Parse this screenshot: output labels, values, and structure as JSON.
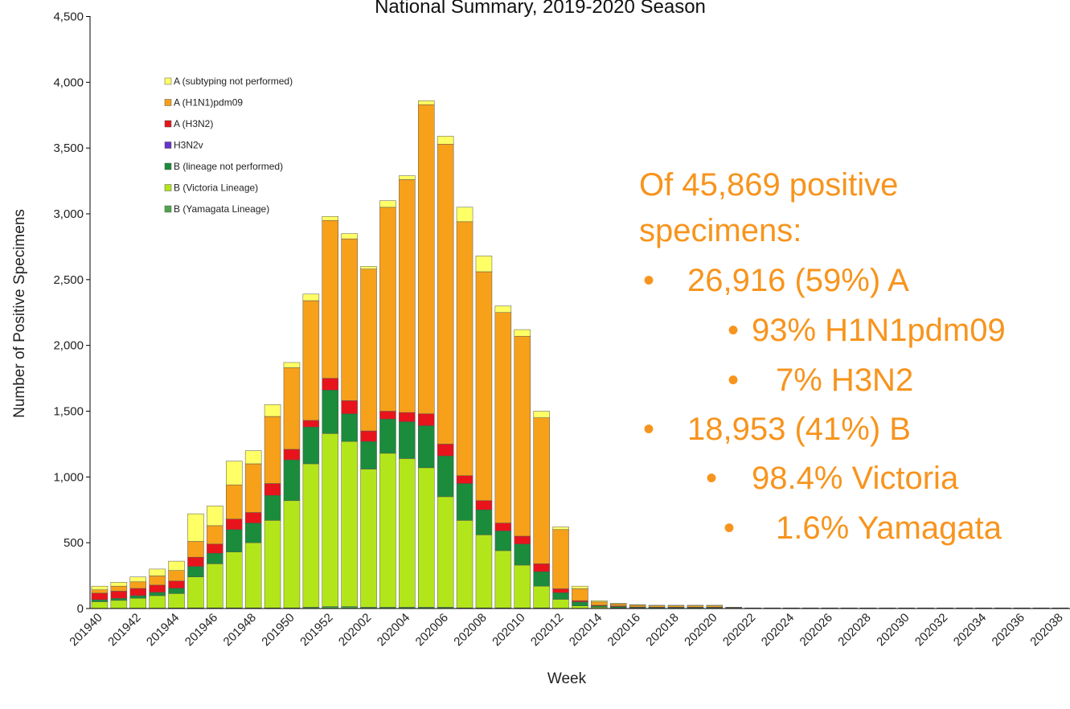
{
  "chart_data": {
    "type": "bar",
    "stacked": true,
    "title": "National Summary, 2019-2020 Season",
    "xlabel": "Week",
    "ylabel": "Number of Positive Specimens",
    "categories": [
      "201940",
      null,
      "201942",
      null,
      "201944",
      null,
      "201946",
      null,
      "201948",
      null,
      "201950",
      null,
      "201952",
      null,
      "202002",
      null,
      "202004",
      null,
      "202006",
      null,
      "202008",
      null,
      "202010",
      null,
      "202012",
      null,
      "202014",
      null,
      "202016",
      null,
      "202018",
      null,
      "202020",
      null,
      "202022",
      null,
      "202024",
      null,
      "202026",
      null,
      "202028",
      null,
      "202030",
      null,
      "202032",
      null,
      "202034",
      null,
      "202036",
      null,
      "202038"
    ],
    "series": [
      {
        "name": "B (Yamagata Lineage)",
        "color": "#4ca64c",
        "values": [
          2,
          2,
          3,
          3,
          4,
          5,
          5,
          5,
          5,
          5,
          5,
          10,
          15,
          15,
          10,
          10,
          10,
          10,
          10,
          5,
          5,
          5,
          5,
          5,
          2,
          1,
          0,
          0,
          0,
          0,
          0,
          0,
          0,
          0,
          0,
          0,
          0,
          0,
          0,
          0,
          0,
          0,
          0,
          0,
          0,
          0,
          0,
          0,
          0,
          0,
          0
        ]
      },
      {
        "name": "B (Victoria Lineage)",
        "color": "#b3e61a",
        "values": [
          50,
          60,
          75,
          95,
          110,
          235,
          335,
          425,
          495,
          665,
          815,
          1090,
          1315,
          1255,
          1050,
          1170,
          1130,
          1060,
          840,
          665,
          555,
          435,
          325,
          165,
          68,
          19,
          10,
          5,
          5,
          3,
          3,
          3,
          3,
          1,
          1,
          1,
          1,
          1,
          1,
          1,
          1,
          1,
          1,
          1,
          1,
          1,
          1,
          1,
          1,
          1,
          1
        ]
      },
      {
        "name": "B (lineage not performed)",
        "color": "#1a8c3c",
        "values": [
          15,
          15,
          20,
          25,
          40,
          80,
          80,
          170,
          150,
          190,
          310,
          280,
          330,
          210,
          210,
          260,
          280,
          320,
          310,
          280,
          190,
          150,
          160,
          110,
          50,
          30,
          10,
          10,
          5,
          5,
          5,
          5,
          5,
          2,
          1,
          1,
          1,
          1,
          1,
          1,
          1,
          1,
          1,
          1,
          1,
          1,
          1,
          1,
          1,
          1,
          1
        ]
      },
      {
        "name": "H3N2v",
        "color": "#6633cc",
        "values": [
          0,
          0,
          0,
          0,
          0,
          0,
          0,
          0,
          0,
          0,
          0,
          0,
          0,
          0,
          0,
          0,
          0,
          0,
          0,
          0,
          0,
          0,
          0,
          0,
          0,
          0,
          0,
          0,
          0,
          0,
          0,
          0,
          0,
          0,
          0,
          0,
          0,
          0,
          0,
          0,
          0,
          0,
          0,
          0,
          0,
          0,
          0,
          0,
          0,
          0,
          0
        ]
      },
      {
        "name": "A (H3N2)",
        "color": "#e8141b",
        "values": [
          50,
          55,
          55,
          55,
          55,
          70,
          70,
          80,
          80,
          90,
          80,
          50,
          90,
          100,
          80,
          60,
          70,
          90,
          90,
          60,
          70,
          60,
          60,
          60,
          30,
          10,
          5,
          5,
          2,
          2,
          2,
          2,
          2,
          1,
          0,
          0,
          0,
          0,
          0,
          0,
          0,
          0,
          0,
          0,
          0,
          0,
          0,
          0,
          0,
          0,
          0
        ]
      },
      {
        "name": "A (H1N1)pdm09",
        "color": "#f7a01a",
        "values": [
          25,
          38,
          50,
          70,
          80,
          120,
          140,
          260,
          370,
          510,
          620,
          910,
          1200,
          1230,
          1230,
          1550,
          1770,
          2350,
          2280,
          1930,
          1740,
          1600,
          1520,
          1110,
          450,
          90,
          25,
          15,
          13,
          10,
          10,
          10,
          10,
          4,
          2,
          2,
          2,
          2,
          2,
          2,
          2,
          2,
          2,
          2,
          2,
          2,
          2,
          2,
          2,
          2,
          2
        ]
      },
      {
        "name": "A (subtyping not performed)",
        "color": "#ffff66",
        "values": [
          28,
          30,
          37,
          52,
          71,
          210,
          150,
          180,
          100,
          90,
          40,
          50,
          30,
          40,
          20,
          50,
          30,
          30,
          60,
          110,
          120,
          50,
          50,
          50,
          20,
          20,
          10,
          5,
          5,
          5,
          5,
          5,
          5,
          2,
          1,
          1,
          1,
          1,
          1,
          1,
          1,
          1,
          1,
          1,
          1,
          1,
          1,
          1,
          1,
          1,
          1
        ]
      }
    ],
    "ylim": [
      0,
      4500
    ],
    "yticks": [
      0,
      500,
      {
        "value": 1000,
        "label": "1,000"
      },
      {
        "value": 1500,
        "label": "1,500"
      },
      {
        "value": 2000,
        "label": "2,000"
      },
      {
        "value": 2500,
        "label": "2,500"
      },
      {
        "value": 3000,
        "label": "3,000"
      },
      {
        "value": 3500,
        "label": "3,500"
      },
      {
        "value": 4000,
        "label": "4,000"
      },
      {
        "value": 4500,
        "label": "4,500"
      }
    ],
    "legend": "upper left",
    "annotations": [
      "Of 45,869 positive",
      "specimens:",
      "26,916 (59%) A",
      "93% H1N1pdm09",
      "7% H3N2",
      "18,953 (41%) B",
      "98.4% Victoria",
      "1.6% Yamagata"
    ]
  }
}
